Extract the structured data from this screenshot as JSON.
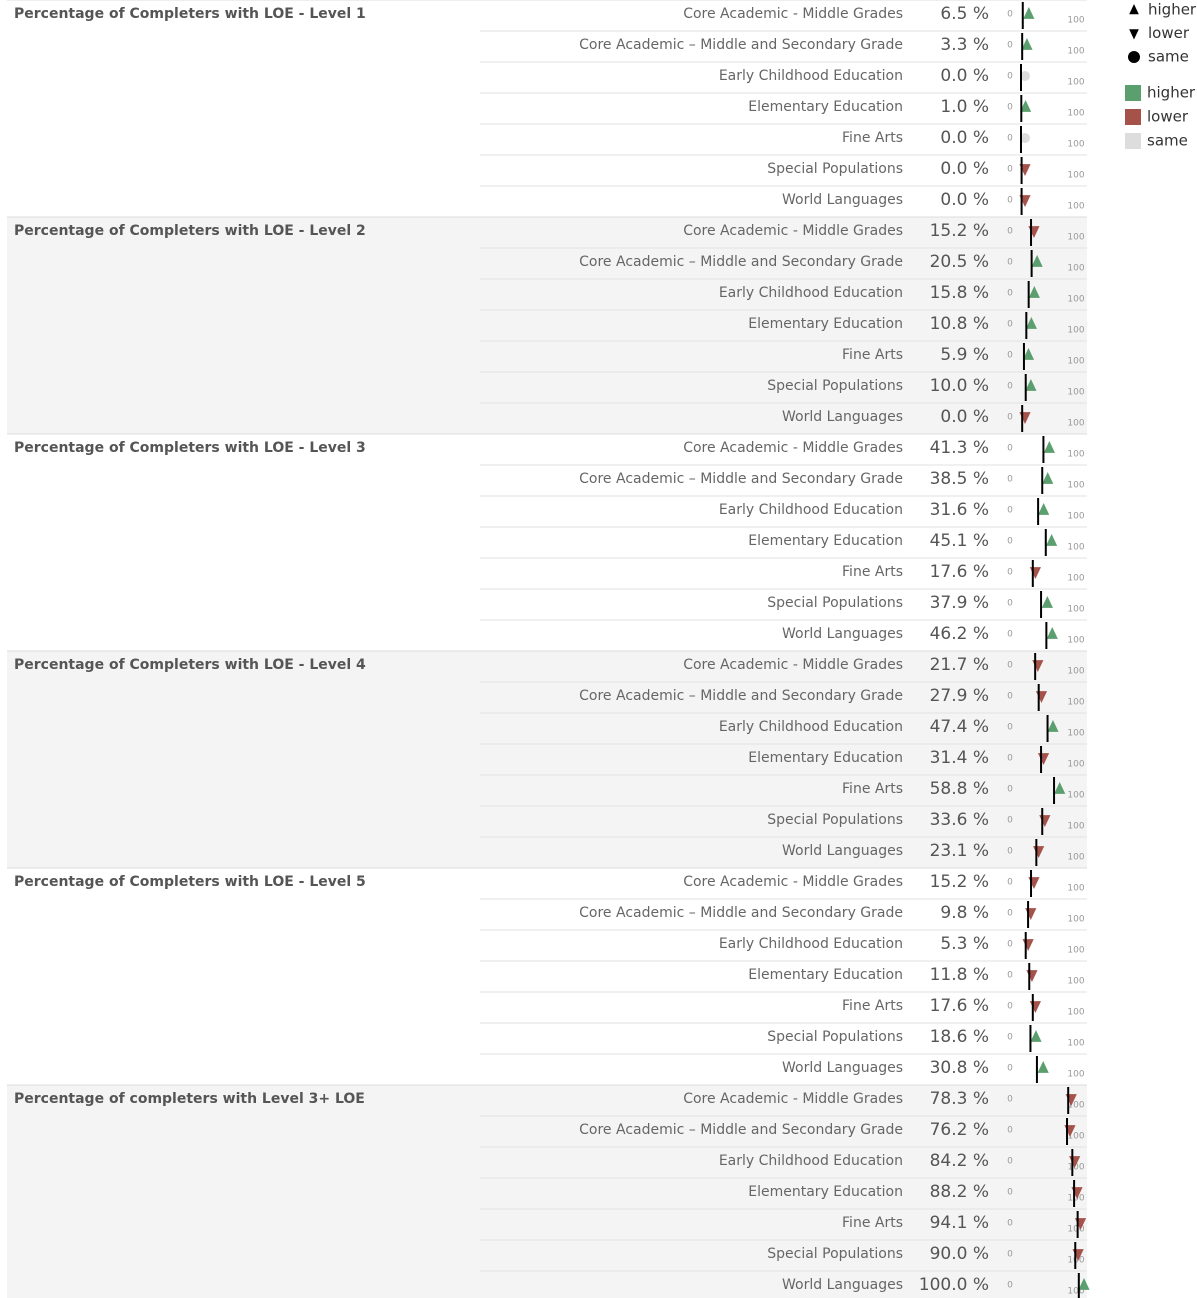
{
  "status_colors": {
    "higher": "#5b9f6e",
    "lower": "#a5524a",
    "same": "#dddddd"
  },
  "range": [
    0,
    100
  ],
  "legend": {
    "shapes": [
      "higher",
      "lower",
      "same"
    ],
    "colors": [
      "higher",
      "lower",
      "same"
    ]
  },
  "groups": [
    {
      "title": "Percentage of Completers with LOE - Level 1",
      "rows": [
        {
          "category": "Core Academic - Middle Grades",
          "value": 6.5,
          "label": "6.5 %",
          "benchmark": 3,
          "status": "higher"
        },
        {
          "category": "Core Academic – Middle and Secondary Grade",
          "value": 3.3,
          "label": "3.3 %",
          "benchmark": 2,
          "status": "higher"
        },
        {
          "category": "Early Childhood Education",
          "value": 0.0,
          "label": "0.0 %",
          "benchmark": 0,
          "status": "same"
        },
        {
          "category": "Elementary Education",
          "value": 1.0,
          "label": "1.0 %",
          "benchmark": 0.5,
          "status": "higher"
        },
        {
          "category": "Fine Arts",
          "value": 0.0,
          "label": "0.0 %",
          "benchmark": 0,
          "status": "same"
        },
        {
          "category": "Special Populations",
          "value": 0.0,
          "label": "0.0 %",
          "benchmark": 1,
          "status": "lower"
        },
        {
          "category": "World Languages",
          "value": 0.0,
          "label": "0.0 %",
          "benchmark": 1,
          "status": "lower"
        }
      ]
    },
    {
      "title": "Percentage of Completers with LOE - Level 2",
      "rows": [
        {
          "category": "Core Academic - Middle Grades",
          "value": 15.2,
          "label": "15.2 %",
          "benchmark": 17,
          "status": "lower"
        },
        {
          "category": "Core Academic – Middle and Secondary Grade",
          "value": 20.5,
          "label": "20.5 %",
          "benchmark": 18,
          "status": "higher"
        },
        {
          "category": "Early Childhood Education",
          "value": 15.8,
          "label": "15.8 %",
          "benchmark": 13,
          "status": "higher"
        },
        {
          "category": "Elementary Education",
          "value": 10.8,
          "label": "10.8 %",
          "benchmark": 9,
          "status": "higher"
        },
        {
          "category": "Fine Arts",
          "value": 5.9,
          "label": "5.9 %",
          "benchmark": 5,
          "status": "higher"
        },
        {
          "category": "Special Populations",
          "value": 10.0,
          "label": "10.0 %",
          "benchmark": 8,
          "status": "higher"
        },
        {
          "category": "World Languages",
          "value": 0.0,
          "label": "0.0 %",
          "benchmark": 2,
          "status": "lower"
        }
      ]
    },
    {
      "title": "Percentage of Completers with LOE - Level 3",
      "rows": [
        {
          "category": "Core Academic - Middle Grades",
          "value": 41.3,
          "label": "41.3 %",
          "benchmark": 38,
          "status": "higher"
        },
        {
          "category": "Core Academic – Middle and Secondary Grade",
          "value": 38.5,
          "label": "38.5 %",
          "benchmark": 36,
          "status": "higher"
        },
        {
          "category": "Early Childhood Education",
          "value": 31.6,
          "label": "31.6 %",
          "benchmark": 29,
          "status": "higher"
        },
        {
          "category": "Elementary Education",
          "value": 45.1,
          "label": "45.1 %",
          "benchmark": 42,
          "status": "higher"
        },
        {
          "category": "Fine Arts",
          "value": 17.6,
          "label": "17.6 %",
          "benchmark": 20,
          "status": "lower"
        },
        {
          "category": "Special Populations",
          "value": 37.9,
          "label": "37.9 %",
          "benchmark": 34,
          "status": "higher"
        },
        {
          "category": "World Languages",
          "value": 46.2,
          "label": "46.2 %",
          "benchmark": 43,
          "status": "higher"
        }
      ]
    },
    {
      "title": "Percentage of Completers with LOE - Level 4",
      "rows": [
        {
          "category": "Core Academic - Middle Grades",
          "value": 21.7,
          "label": "21.7 %",
          "benchmark": 24,
          "status": "lower"
        },
        {
          "category": "Core Academic – Middle and Secondary Grade",
          "value": 27.9,
          "label": "27.9 %",
          "benchmark": 30,
          "status": "lower"
        },
        {
          "category": "Early Childhood Education",
          "value": 47.4,
          "label": "47.4 %",
          "benchmark": 45,
          "status": "higher"
        },
        {
          "category": "Elementary Education",
          "value": 31.4,
          "label": "31.4 %",
          "benchmark": 34,
          "status": "lower"
        },
        {
          "category": "Fine Arts",
          "value": 58.8,
          "label": "58.8 %",
          "benchmark": 56,
          "status": "higher"
        },
        {
          "category": "Special Populations",
          "value": 33.6,
          "label": "33.6 %",
          "benchmark": 36,
          "status": "lower"
        },
        {
          "category": "World Languages",
          "value": 23.1,
          "label": "23.1 %",
          "benchmark": 26,
          "status": "lower"
        }
      ]
    },
    {
      "title": "Percentage of Completers with LOE - Level 5",
      "rows": [
        {
          "category": "Core Academic - Middle Grades",
          "value": 15.2,
          "label": "15.2 %",
          "benchmark": 17,
          "status": "lower"
        },
        {
          "category": "Core Academic – Middle and Secondary Grade",
          "value": 9.8,
          "label": "9.8 %",
          "benchmark": 12,
          "status": "lower"
        },
        {
          "category": "Early Childhood Education",
          "value": 5.3,
          "label": "5.3 %",
          "benchmark": 8,
          "status": "lower"
        },
        {
          "category": "Elementary Education",
          "value": 11.8,
          "label": "11.8 %",
          "benchmark": 14,
          "status": "lower"
        },
        {
          "category": "Fine Arts",
          "value": 17.6,
          "label": "17.6 %",
          "benchmark": 20,
          "status": "lower"
        },
        {
          "category": "Special Populations",
          "value": 18.6,
          "label": "18.6 %",
          "benchmark": 16,
          "status": "higher"
        },
        {
          "category": "World Languages",
          "value": 30.8,
          "label": "30.8 %",
          "benchmark": 27,
          "status": "higher"
        }
      ]
    },
    {
      "title": "Percentage of completers with Level 3+ LOE",
      "rows": [
        {
          "category": "Core Academic - Middle Grades",
          "value": 78.3,
          "label": "78.3 %",
          "benchmark": 80,
          "status": "lower"
        },
        {
          "category": "Core Academic – Middle and Secondary Grade",
          "value": 76.2,
          "label": "76.2 %",
          "benchmark": 78,
          "status": "lower"
        },
        {
          "category": "Early Childhood Education",
          "value": 84.2,
          "label": "84.2 %",
          "benchmark": 87,
          "status": "lower"
        },
        {
          "category": "Elementary Education",
          "value": 88.2,
          "label": "88.2 %",
          "benchmark": 90,
          "status": "lower"
        },
        {
          "category": "Fine Arts",
          "value": 94.1,
          "label": "94.1 %",
          "benchmark": 96,
          "status": "lower"
        },
        {
          "category": "Special Populations",
          "value": 90.0,
          "label": "90.0 %",
          "benchmark": 92,
          "status": "lower"
        },
        {
          "category": "World Languages",
          "value": 100.0,
          "label": "100.0 %",
          "benchmark": 98,
          "status": "higher"
        }
      ]
    }
  ]
}
